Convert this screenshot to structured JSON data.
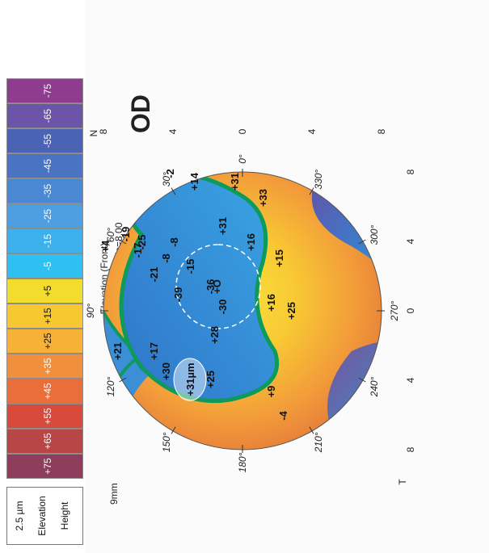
{
  "map": {
    "title": "Elevation (Front)",
    "subtitle": "BFS=8.58 Float, Dia=8.00",
    "eye": "OD",
    "zoom_label": "9mm",
    "center_marker": "+O",
    "peak_label": "+31µm",
    "nasal_label": "N",
    "temporal_label": "T"
  },
  "legend": {
    "step": "2.5 µm",
    "type": "Elevation",
    "mode": "Height",
    "levels": [
      "-75",
      "-65",
      "-55",
      "-45",
      "-35",
      "-25",
      "-15",
      "-5",
      "+5",
      "+15",
      "+25",
      "+35",
      "+45",
      "+55",
      "+65",
      "+75"
    ],
    "colors": [
      "#8e3c8e",
      "#6c55a8",
      "#4b63b4",
      "#4a73c4",
      "#4b88d4",
      "#4e9ee2",
      "#3cb1ec",
      "#2ec0f0",
      "#f2dc2c",
      "#f7c830",
      "#f6b136",
      "#f18f3c",
      "#e96e3a",
      "#d84a3c",
      "#b84646",
      "#8e3d5a"
    ]
  },
  "angles": [
    "0°",
    "30°",
    "60°",
    "90°",
    "120°",
    "150°",
    "180°",
    "210°",
    "240°",
    "270°",
    "300°",
    "330°"
  ],
  "axis_ticks": [
    "8",
    "4",
    "0",
    "4",
    "8"
  ],
  "values": [
    "-36",
    "-15",
    "-8",
    "-21",
    "-8",
    "-25",
    "-19",
    "-17",
    "+4",
    "-30",
    "-39",
    "+16",
    "+16",
    "+15",
    "+33",
    "+31",
    "+31",
    "+14",
    "+25",
    "-2",
    "+21",
    "+17",
    "+28",
    "+25",
    "+30",
    "+9",
    "-4"
  ]
}
